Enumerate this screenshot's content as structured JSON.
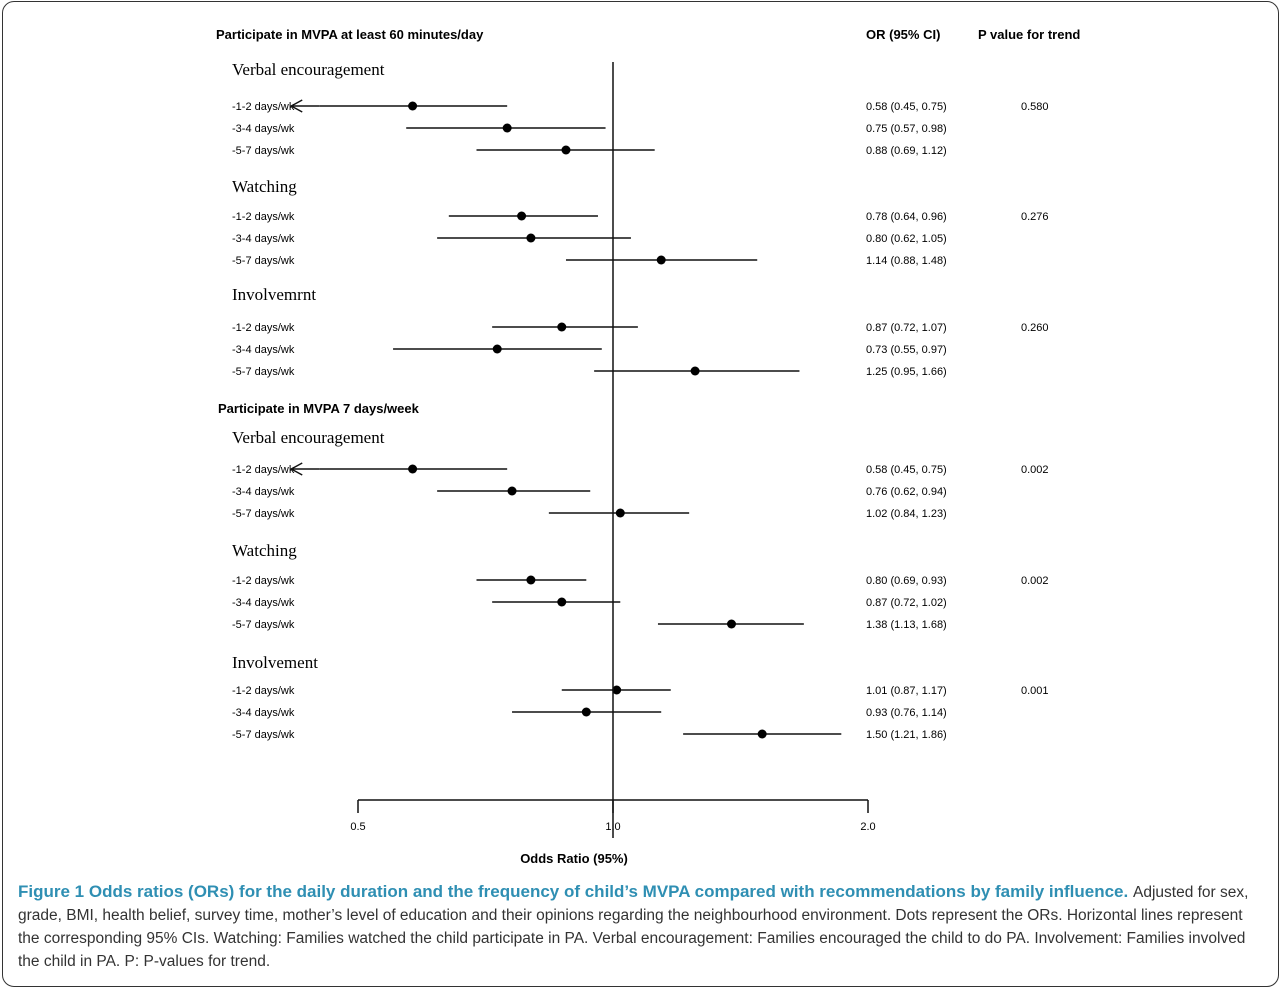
{
  "chart_data": {
    "type": "forest",
    "x_scale": "log",
    "xlim": [
      0.5,
      2.0
    ],
    "xticks": [
      "0.5",
      "1.0",
      "2.0"
    ],
    "xlabel": "Odds Ratio (95%)",
    "reference_line": 1.0,
    "column_headers": {
      "or": "OR (95% CI)",
      "p": "P value for trend"
    },
    "sections": [
      {
        "title": "Participate in MVPA at least 60 minutes/day",
        "groups": [
          {
            "name": "Verbal encouragement",
            "p_trend": "0.580",
            "rows": [
              {
                "label": "-1-2 days/wk",
                "or": 0.58,
                "lo": 0.45,
                "hi": 0.75,
                "text": "0.58 (0.45, 0.75)",
                "arrow_left": true
              },
              {
                "label": "-3-4 days/wk",
                "or": 0.75,
                "lo": 0.57,
                "hi": 0.98,
                "text": "0.75 (0.57, 0.98)"
              },
              {
                "label": "-5-7 days/wk",
                "or": 0.88,
                "lo": 0.69,
                "hi": 1.12,
                "text": "0.88 (0.69, 1.12)"
              }
            ]
          },
          {
            "name": "Watching",
            "p_trend": "0.276",
            "rows": [
              {
                "label": "-1-2 days/wk",
                "or": 0.78,
                "lo": 0.64,
                "hi": 0.96,
                "text": "0.78 (0.64, 0.96)"
              },
              {
                "label": "-3-4 days/wk",
                "or": 0.8,
                "lo": 0.62,
                "hi": 1.05,
                "text": "0.80 (0.62, 1.05)"
              },
              {
                "label": "-5-7 days/wk",
                "or": 1.14,
                "lo": 0.88,
                "hi": 1.48,
                "text": "1.14 (0.88, 1.48)"
              }
            ]
          },
          {
            "name": "Involvemrnt",
            "p_trend": "0.260",
            "rows": [
              {
                "label": "-1-2 days/wk",
                "or": 0.87,
                "lo": 0.72,
                "hi": 1.07,
                "text": "0.87 (0.72, 1.07)"
              },
              {
                "label": "-3-4 days/wk",
                "or": 0.73,
                "lo": 0.55,
                "hi": 0.97,
                "text": "0.73 (0.55, 0.97)"
              },
              {
                "label": "-5-7 days/wk",
                "or": 1.25,
                "lo": 0.95,
                "hi": 1.66,
                "text": "1.25 (0.95, 1.66)"
              }
            ]
          }
        ]
      },
      {
        "title": "Participate in MVPA 7 days/week",
        "groups": [
          {
            "name": "Verbal encouragement",
            "p_trend": "0.002",
            "rows": [
              {
                "label": "-1-2 days/wk",
                "or": 0.58,
                "lo": 0.45,
                "hi": 0.75,
                "text": "0.58 (0.45, 0.75)",
                "arrow_left": true
              },
              {
                "label": "-3-4 days/wk",
                "or": 0.76,
                "lo": 0.62,
                "hi": 0.94,
                "text": "0.76 (0.62, 0.94)"
              },
              {
                "label": "-5-7 days/wk",
                "or": 1.02,
                "lo": 0.84,
                "hi": 1.23,
                "text": "1.02 (0.84, 1.23)"
              }
            ]
          },
          {
            "name": "Watching",
            "p_trend": "0.002",
            "rows": [
              {
                "label": "-1-2 days/wk",
                "or": 0.8,
                "lo": 0.69,
                "hi": 0.93,
                "text": "0.80 (0.69, 0.93)"
              },
              {
                "label": "-3-4 days/wk",
                "or": 0.87,
                "lo": 0.72,
                "hi": 1.02,
                "text": "0.87 (0.72, 1.02)"
              },
              {
                "label": "-5-7 days/wk",
                "or": 1.38,
                "lo": 1.13,
                "hi": 1.68,
                "text": "1.38 (1.13, 1.68)"
              }
            ]
          },
          {
            "name": "Involvement",
            "p_trend": "0.001",
            "rows": [
              {
                "label": "-1-2 days/wk",
                "or": 1.01,
                "lo": 0.87,
                "hi": 1.17,
                "text": "1.01 (0.87, 1.17)"
              },
              {
                "label": "-3-4 days/wk",
                "or": 0.93,
                "lo": 0.76,
                "hi": 1.14,
                "text": "0.93 (0.76, 1.14)"
              },
              {
                "label": "-5-7 days/wk",
                "or": 1.5,
                "lo": 1.21,
                "hi": 1.86,
                "text": "1.50 (1.21, 1.86)"
              }
            ]
          }
        ]
      }
    ]
  },
  "caption": {
    "title": "Figure 1 Odds ratios (ORs) for the daily duration and the frequency of child’s MVPA compared with recommendations by family influence.",
    "body": "Adjusted for sex, grade, BMI, health belief, survey time, mother’s level of education and their opinions regarding the neighbourhood environment. Dots represent the ORs. Horizontal lines represent the corresponding 95% CIs. Watching: Families watched the child participate in PA. Verbal encouragement: Families encouraged the child to do PA. Involvement: Families involved the child in PA. P: P-values for trend."
  }
}
